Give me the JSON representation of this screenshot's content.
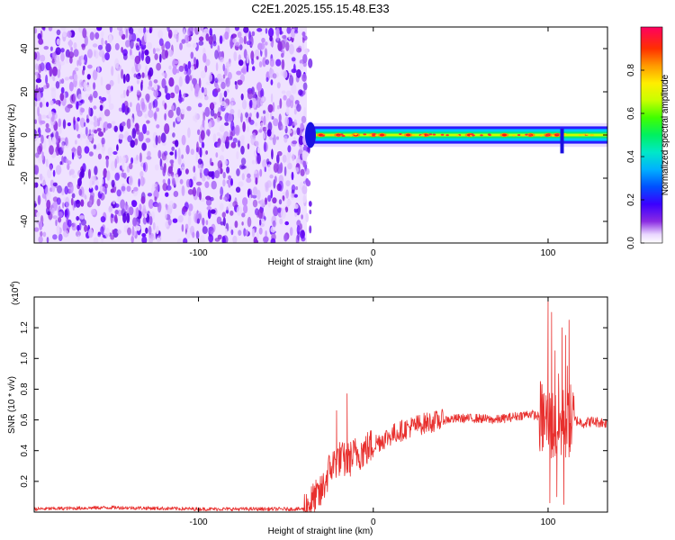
{
  "title": "C2E1.2025.155.15.48.E33",
  "chart_data": [
    {
      "type": "heatmap",
      "name": "spectrogram",
      "xlabel": "Height of straight line (km)",
      "ylabel": "Frequency (Hz)",
      "xlim": [
        -194,
        134
      ],
      "ylim": [
        -50,
        50
      ],
      "xticks": [
        -100,
        0,
        100
      ],
      "xtick_labels": [
        "-100",
        "0",
        "100"
      ],
      "yticks": [
        -40,
        -20,
        0,
        20,
        40
      ],
      "ytick_labels": [
        "-40",
        "-20",
        "0",
        "20",
        "40"
      ],
      "noise_region_x": [
        -194,
        -38
      ],
      "signal_line": {
        "x_start": -38,
        "x_end": 134,
        "center_freq_hz": 0,
        "halfwidth_hz": 2.5,
        "peaks_x": [
          -30,
          -20,
          -10,
          0,
          5,
          20,
          30,
          55,
          75,
          90,
          100,
          105
        ]
      },
      "colorbar": {
        "label": "Normalized spectral amplitude",
        "range": [
          0,
          1
        ],
        "ticks": [
          0.0,
          0.2,
          0.4,
          0.6,
          0.8
        ],
        "tick_labels": [
          "0.0",
          "0.2",
          "0.4",
          "0.6",
          "0.8"
        ]
      }
    },
    {
      "type": "line",
      "name": "snr",
      "xlabel": "Height of straight line (km)",
      "ylabel": "SNR (10 * v/v)",
      "exponent_label": "(x10",
      "exponent_power": "4",
      "exponent_close": ")",
      "xlim": [
        -194,
        134
      ],
      "ylim": [
        0,
        1.4
      ],
      "xticks": [
        -100,
        0,
        100
      ],
      "xtick_labels": [
        "-100",
        "0",
        "100"
      ],
      "yticks": [
        0.2,
        0.4,
        0.6,
        0.8,
        1.0,
        1.2
      ],
      "ytick_labels": [
        "0.2",
        "0.4",
        "0.6",
        "0.8",
        "1.0",
        "1.2"
      ],
      "color": "#e8302e",
      "x": [
        -194,
        -150,
        -100,
        -40,
        -30,
        -25,
        -20,
        -15,
        -10,
        -5,
        0,
        10,
        20,
        30,
        40,
        50,
        60,
        70,
        80,
        90,
        95,
        100,
        105,
        110,
        115,
        120,
        125,
        134
      ],
      "values": [
        0.02,
        0.03,
        0.02,
        0.02,
        0.12,
        0.28,
        0.35,
        0.33,
        0.38,
        0.4,
        0.44,
        0.5,
        0.55,
        0.58,
        0.6,
        0.61,
        0.61,
        0.6,
        0.62,
        0.64,
        0.62,
        0.58,
        0.55,
        0.58,
        0.6,
        0.58,
        0.59,
        0.58
      ],
      "spikes": [
        {
          "x": -21,
          "y": 0.66
        },
        {
          "x": -15,
          "y": 0.77
        },
        {
          "x": 97,
          "y": 0.72
        },
        {
          "x": 100,
          "y": 1.4
        },
        {
          "x": 102,
          "y": 1.3
        },
        {
          "x": 104,
          "y": 1.05
        },
        {
          "x": 106,
          "y": 0.9
        },
        {
          "x": 108,
          "y": 1.2
        },
        {
          "x": 110,
          "y": 1.15
        },
        {
          "x": 111,
          "y": 0.95
        },
        {
          "x": 112,
          "y": 1.25
        },
        {
          "x": 101,
          "y": 0.06
        },
        {
          "x": 105,
          "y": 0.1
        },
        {
          "x": 109,
          "y": 0.05
        }
      ]
    }
  ]
}
